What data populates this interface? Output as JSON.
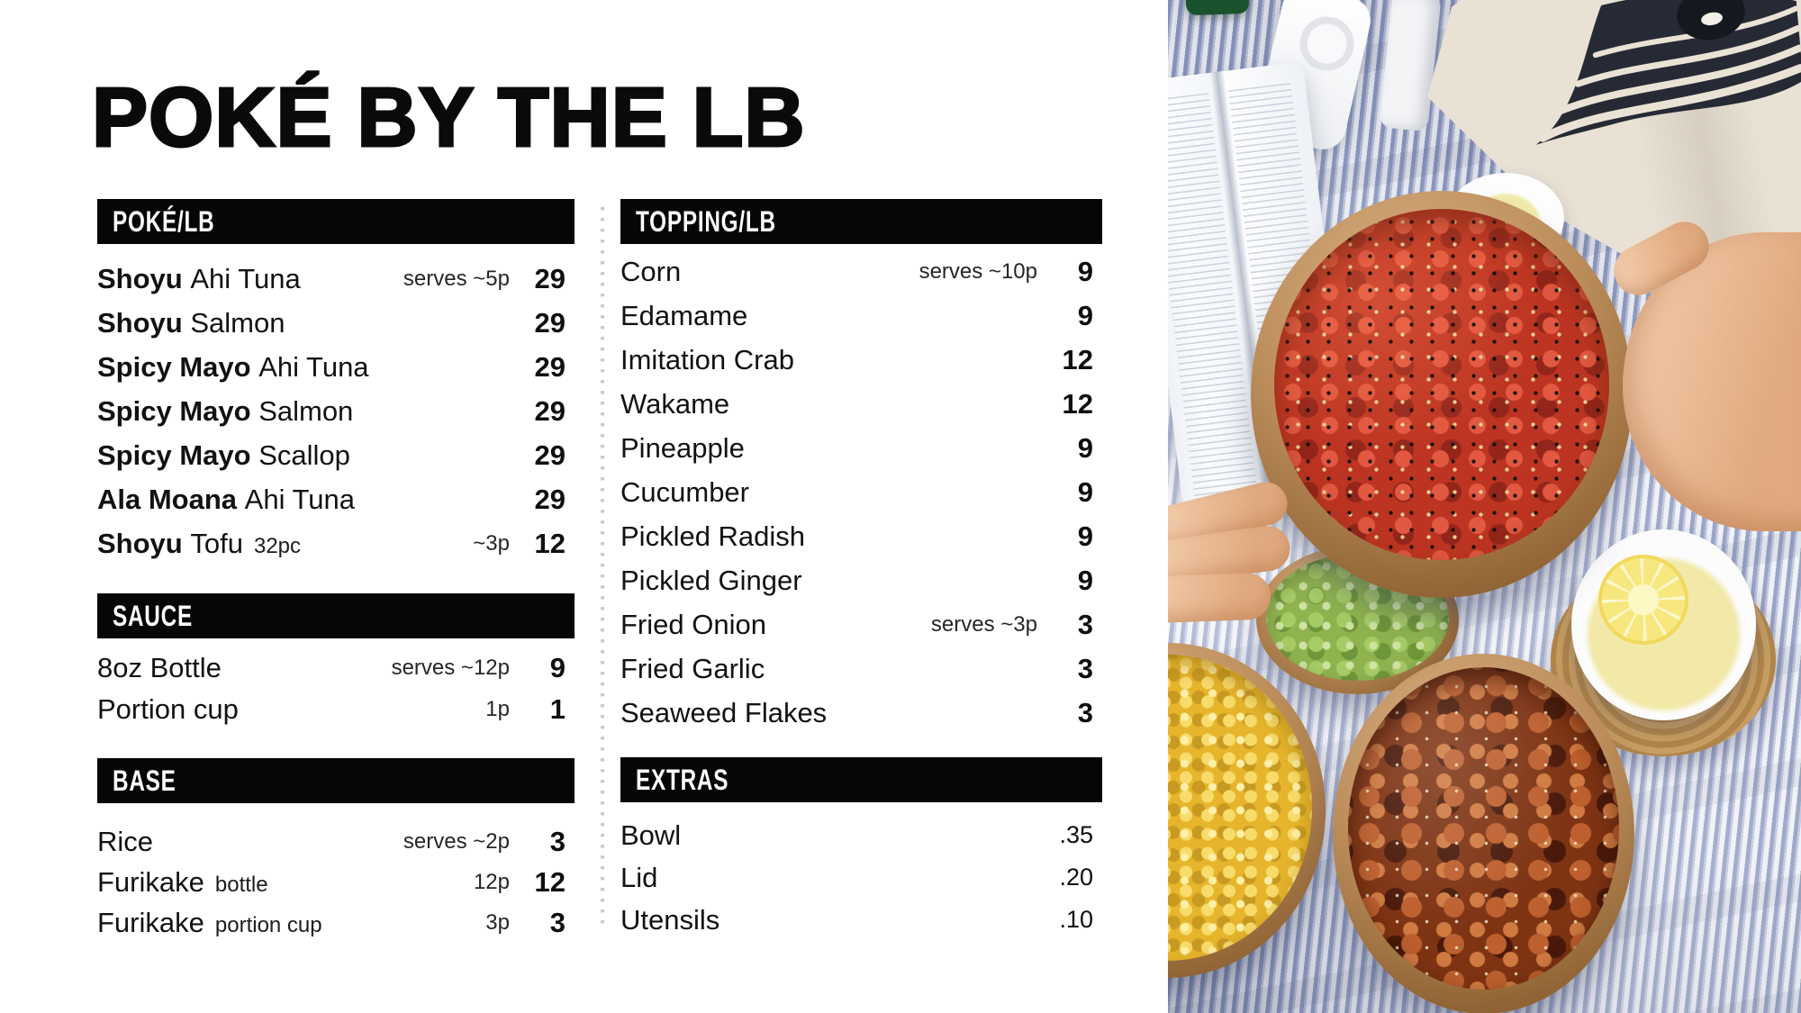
{
  "title": "POKÉ BY THE LB",
  "menu": {
    "columns": [
      {
        "id": "left",
        "sections": [
          {
            "id": "poke",
            "header": "POKÉ/LB",
            "items": [
              {
                "bold": "Shoyu",
                "name": "Ahi Tuna",
                "serves": "serves ~5p",
                "price": "29"
              },
              {
                "bold": "Shoyu",
                "name": "Salmon",
                "price": "29"
              },
              {
                "bold": "Spicy Mayo",
                "name": "Ahi Tuna",
                "price": "29"
              },
              {
                "bold": "Spicy Mayo",
                "name": "Salmon",
                "price": "29"
              },
              {
                "bold": "Spicy Mayo",
                "name": "Scallop",
                "price": "29"
              },
              {
                "bold": "Ala Moana",
                "name": "Ahi Tuna",
                "price": "29"
              },
              {
                "bold": "Shoyu",
                "name": "Tofu",
                "note": "32pc",
                "serves": "~3p",
                "price": "12"
              }
            ]
          },
          {
            "id": "sauce",
            "header": "SAUCE",
            "items": [
              {
                "name": "8oz Bottle",
                "serves": "serves ~12p",
                "price": "9"
              },
              {
                "name": "Portion cup",
                "serves": "1p",
                "price": "1"
              }
            ]
          },
          {
            "id": "base",
            "header": "BASE",
            "items": [
              {
                "name": "Rice",
                "serves": "serves ~2p",
                "price": "3"
              },
              {
                "name": "Furikake",
                "note": "bottle",
                "serves": "12p",
                "price": "12"
              },
              {
                "name": "Furikake",
                "note": "portion cup",
                "serves": "3p",
                "price": "3"
              }
            ]
          }
        ]
      },
      {
        "id": "right",
        "sections": [
          {
            "id": "topping",
            "header": "TOPPING/LB",
            "items": [
              {
                "name": "Corn",
                "serves": "serves ~10p",
                "price": "9"
              },
              {
                "name": "Edamame",
                "price": "9"
              },
              {
                "name": "Imitation Crab",
                "price": "12"
              },
              {
                "name": "Wakame",
                "price": "12"
              },
              {
                "name": "Pineapple",
                "price": "9"
              },
              {
                "name": "Cucumber",
                "price": "9"
              },
              {
                "name": "Pickled Radish",
                "price": "9"
              },
              {
                "name": "Pickled Ginger",
                "price": "9"
              },
              {
                "name": "Fried Onion",
                "serves": "serves ~3p",
                "price": "3"
              },
              {
                "name": "Fried Garlic",
                "price": "3"
              },
              {
                "name": "Seaweed Flakes",
                "price": "3"
              }
            ]
          },
          {
            "id": "extras",
            "header": "EXTRAS",
            "items": [
              {
                "name": "Bowl",
                "price": ".35"
              },
              {
                "name": "Lid",
                "price": ".20"
              },
              {
                "name": "Utensils",
                "price": ".10"
              }
            ]
          }
        ]
      }
    ]
  },
  "photo": {
    "label": "picnic flatlay photo: hands holding a spicy ahi tuna poke bowl over bowls of edamame, corn and shoyu salmon poke on a blue striped blanket with an open book, canvas tote bag and citrus drinks",
    "colors": {
      "stripe_blue": "#8b97bf",
      "stripe_white": "#edeff6",
      "kraft_bowl": "#bc8d5b",
      "tuna_red": "#bd3522",
      "salmon_brown": "#7e3313",
      "corn_yellow": "#e6b52c",
      "edamame_green": "#8fb44f",
      "skin": "#e8b globa696",
      "tote_beige": "#e9e1d3",
      "wave_ink": "#262a35",
      "lemon": "#f2e9a9"
    }
  }
}
